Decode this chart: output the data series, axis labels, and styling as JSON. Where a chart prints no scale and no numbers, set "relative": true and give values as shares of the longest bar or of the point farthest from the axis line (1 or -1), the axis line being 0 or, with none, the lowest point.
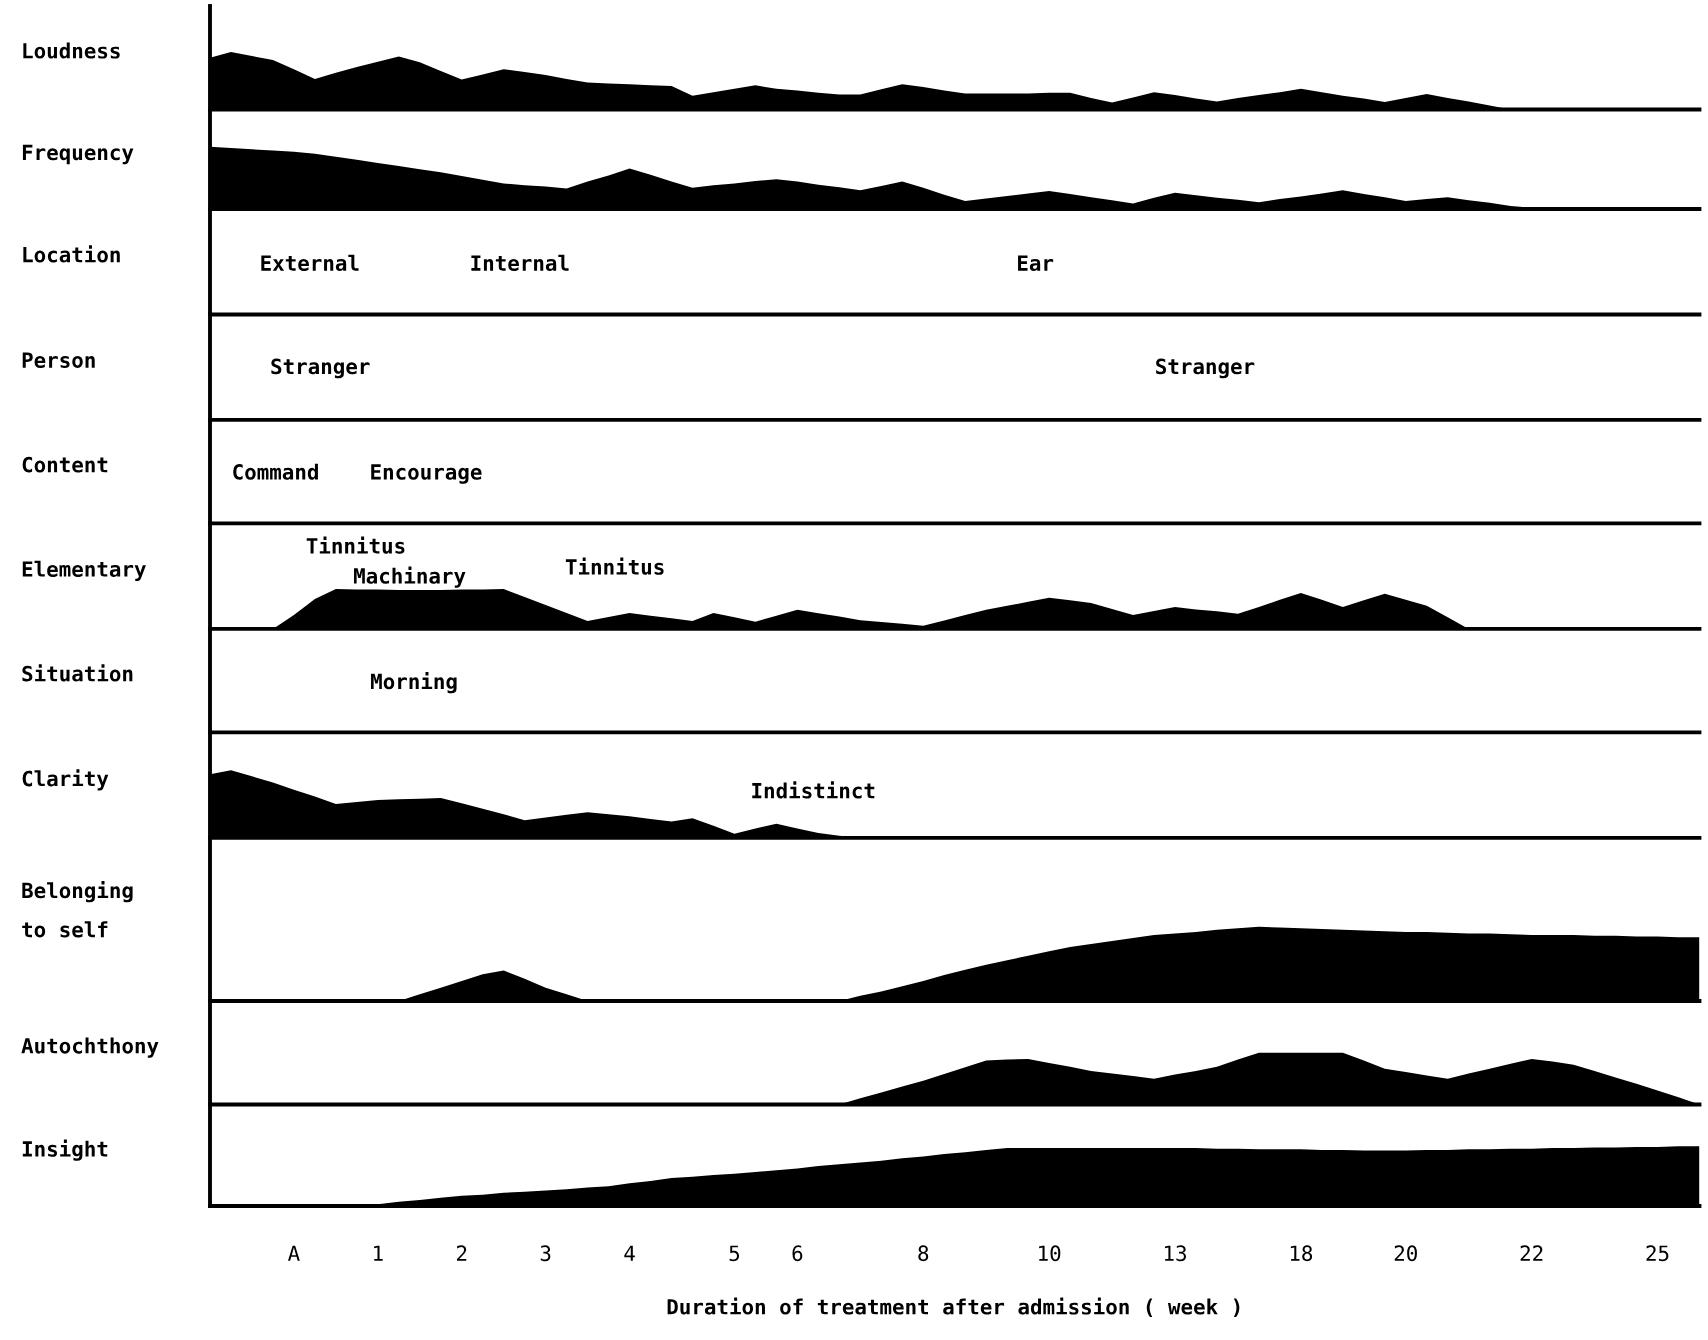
{
  "chart_data": [
    {
      "type": "area",
      "ylabel": "Loudness",
      "relative": true,
      "color": "#000000",
      "values": [
        0.9,
        1.0,
        0.93,
        0.86,
        0.7,
        0.53,
        0.64,
        0.74,
        0.83,
        0.92,
        0.82,
        0.67,
        0.52,
        0.61,
        0.7,
        0.65,
        0.6,
        0.53,
        0.47,
        0.45,
        0.44,
        0.42,
        0.41,
        0.24,
        0.3,
        0.36,
        0.42,
        0.36,
        0.33,
        0.29,
        0.26,
        0.26,
        0.35,
        0.44,
        0.39,
        0.33,
        0.28,
        0.28,
        0.28,
        0.28,
        0.29,
        0.29,
        0.2,
        0.12,
        0.21,
        0.3,
        0.25,
        0.19,
        0.14,
        0.2,
        0.25,
        0.3,
        0.36,
        0.3,
        0.24,
        0.19,
        0.13,
        0.2,
        0.27,
        0.2,
        0.14,
        0.07,
        0,
        0,
        0,
        0,
        0,
        0,
        0,
        0,
        0,
        0
      ]
    },
    {
      "type": "area",
      "ylabel": "Frequency",
      "relative": true,
      "color": "#000000",
      "values": [
        1.0,
        0.98,
        0.96,
        0.94,
        0.92,
        0.89,
        0.84,
        0.79,
        0.74,
        0.69,
        0.64,
        0.59,
        0.53,
        0.47,
        0.41,
        0.38,
        0.36,
        0.33,
        0.44,
        0.54,
        0.65,
        0.55,
        0.44,
        0.34,
        0.38,
        0.41,
        0.45,
        0.48,
        0.44,
        0.39,
        0.35,
        0.3,
        0.37,
        0.44,
        0.34,
        0.23,
        0.13,
        0.17,
        0.21,
        0.25,
        0.29,
        0.24,
        0.19,
        0.14,
        0.09,
        0.18,
        0.26,
        0.22,
        0.18,
        0.15,
        0.11,
        0.16,
        0.2,
        0.25,
        0.3,
        0.24,
        0.19,
        0.13,
        0.16,
        0.19,
        0.14,
        0.1,
        0.05,
        0.02,
        0,
        0,
        0,
        0,
        0,
        0,
        0,
        0
      ]
    },
    {
      "type": "other",
      "ylabel": "Location",
      "annotations": [
        "External",
        "Internal",
        "Ear"
      ]
    },
    {
      "type": "other",
      "ylabel": "Person",
      "annotations": [
        "Stranger",
        "Stranger"
      ]
    },
    {
      "type": "other",
      "ylabel": "Content",
      "annotations": [
        "Command",
        "Encourage"
      ]
    },
    {
      "type": "area",
      "ylabel": "Elementary",
      "relative": true,
      "color": "#000000",
      "values": [
        0,
        0,
        0,
        0,
        0.35,
        0.75,
        1.0,
        0.99,
        0.99,
        0.98,
        0.98,
        0.98,
        0.99,
        0.99,
        1.0,
        0.8,
        0.6,
        0.4,
        0.2,
        0.3,
        0.4,
        0.33,
        0.27,
        0.2,
        0.4,
        0.29,
        0.18,
        0.33,
        0.48,
        0.39,
        0.31,
        0.22,
        0.17,
        0.13,
        0.08,
        0.21,
        0.35,
        0.48,
        0.58,
        0.68,
        0.78,
        0.72,
        0.65,
        0.5,
        0.35,
        0.45,
        0.55,
        0.49,
        0.44,
        0.38,
        0.55,
        0.73,
        0.9,
        0.73,
        0.55,
        0.72,
        0.88,
        0.73,
        0.58,
        0.29,
        0,
        0,
        0,
        0,
        0,
        0,
        0,
        0,
        0,
        0,
        0,
        0
      ],
      "annotations": [
        "Tinnitus",
        "Machinary",
        "Tinnitus"
      ]
    },
    {
      "type": "other",
      "ylabel": "Situation",
      "annotations": [
        "Morning"
      ]
    },
    {
      "type": "area",
      "ylabel": "Clarity",
      "relative": true,
      "color": "#000000",
      "values": [
        0.94,
        1.0,
        0.91,
        0.82,
        0.71,
        0.61,
        0.5,
        0.53,
        0.56,
        0.57,
        0.58,
        0.59,
        0.51,
        0.43,
        0.35,
        0.26,
        0.3,
        0.34,
        0.38,
        0.35,
        0.32,
        0.28,
        0.24,
        0.29,
        0.18,
        0.06,
        0.14,
        0.21,
        0.14,
        0.07,
        0.03,
        0,
        0,
        0,
        0,
        0,
        0,
        0,
        0,
        0,
        0,
        0,
        0,
        0,
        0,
        0,
        0,
        0,
        0,
        0,
        0,
        0,
        0,
        0,
        0,
        0,
        0,
        0,
        0,
        0,
        0,
        0,
        0,
        0,
        0,
        0,
        0,
        0,
        0,
        0,
        0,
        0
      ],
      "annotations": [
        "Indistinct"
      ]
    },
    {
      "type": "area",
      "ylabel": "Belonging\nto self",
      "relative": true,
      "color": "#000000",
      "values": [
        0,
        0,
        0,
        0,
        0,
        0,
        0,
        0,
        0,
        0,
        0.09,
        0.18,
        0.27,
        0.36,
        0.41,
        0.3,
        0.18,
        0.09,
        0,
        0,
        0,
        0,
        0,
        0,
        0,
        0,
        0,
        0,
        0,
        0,
        0,
        0.07,
        0.13,
        0.2,
        0.27,
        0.35,
        0.42,
        0.49,
        0.55,
        0.61,
        0.67,
        0.73,
        0.77,
        0.81,
        0.85,
        0.89,
        0.91,
        0.93,
        0.96,
        0.98,
        1.0,
        0.99,
        0.98,
        0.97,
        0.96,
        0.95,
        0.94,
        0.93,
        0.93,
        0.92,
        0.91,
        0.91,
        0.9,
        0.89,
        0.89,
        0.89,
        0.88,
        0.88,
        0.87,
        0.87,
        0.86,
        0.86
      ]
    },
    {
      "type": "area",
      "ylabel": "Autochthony",
      "relative": true,
      "color": "#000000",
      "values": [
        0,
        0,
        0,
        0,
        0,
        0,
        0,
        0,
        0,
        0,
        0,
        0,
        0,
        0,
        0,
        0,
        0,
        0,
        0,
        0,
        0,
        0,
        0,
        0,
        0,
        0,
        0,
        0,
        0,
        0,
        0,
        0.12,
        0.23,
        0.35,
        0.46,
        0.59,
        0.72,
        0.85,
        0.87,
        0.88,
        0.8,
        0.73,
        0.65,
        0.6,
        0.55,
        0.5,
        0.58,
        0.65,
        0.73,
        0.87,
        1.0,
        1.0,
        1.0,
        1.0,
        1.0,
        0.85,
        0.69,
        0.63,
        0.56,
        0.5,
        0.6,
        0.69,
        0.79,
        0.88,
        0.83,
        0.77,
        0.65,
        0.52,
        0.4,
        0.27,
        0.14,
        0
      ]
    },
    {
      "type": "area",
      "ylabel": "Insight",
      "relative": true,
      "color": "#000000",
      "xlabel": "Duration of treatment after admission ( week )",
      "categories": [
        null,
        null,
        null,
        null,
        "A",
        null,
        null,
        null,
        "1",
        null,
        null,
        null,
        "2",
        null,
        null,
        null,
        "3",
        null,
        null,
        null,
        "4",
        null,
        null,
        null,
        null,
        "5",
        null,
        null,
        "6",
        null,
        null,
        null,
        null,
        null,
        "8",
        null,
        null,
        null,
        null,
        null,
        "10",
        null,
        null,
        null,
        null,
        null,
        "13",
        null,
        null,
        null,
        null,
        null,
        "18",
        null,
        null,
        null,
        null,
        "20",
        null,
        null,
        null,
        null,
        null,
        "22",
        null,
        null,
        null,
        null,
        null,
        "25",
        null,
        null
      ],
      "values": [
        0,
        0,
        0,
        0,
        0,
        0,
        0,
        0,
        0.03,
        0.07,
        0.1,
        0.14,
        0.17,
        0.19,
        0.22,
        0.24,
        0.26,
        0.28,
        0.31,
        0.33,
        0.38,
        0.42,
        0.47,
        0.49,
        0.52,
        0.54,
        0.57,
        0.6,
        0.63,
        0.67,
        0.7,
        0.73,
        0.76,
        0.8,
        0.83,
        0.87,
        0.9,
        0.94,
        0.97,
        0.97,
        0.97,
        0.97,
        0.97,
        0.97,
        0.97,
        0.97,
        0.97,
        0.97,
        0.96,
        0.96,
        0.95,
        0.95,
        0.95,
        0.94,
        0.94,
        0.93,
        0.93,
        0.93,
        0.94,
        0.94,
        0.95,
        0.95,
        0.96,
        0.96,
        0.97,
        0.97,
        0.98,
        0.98,
        0.99,
        0.99,
        1.0,
        1.0
      ]
    }
  ]
}
